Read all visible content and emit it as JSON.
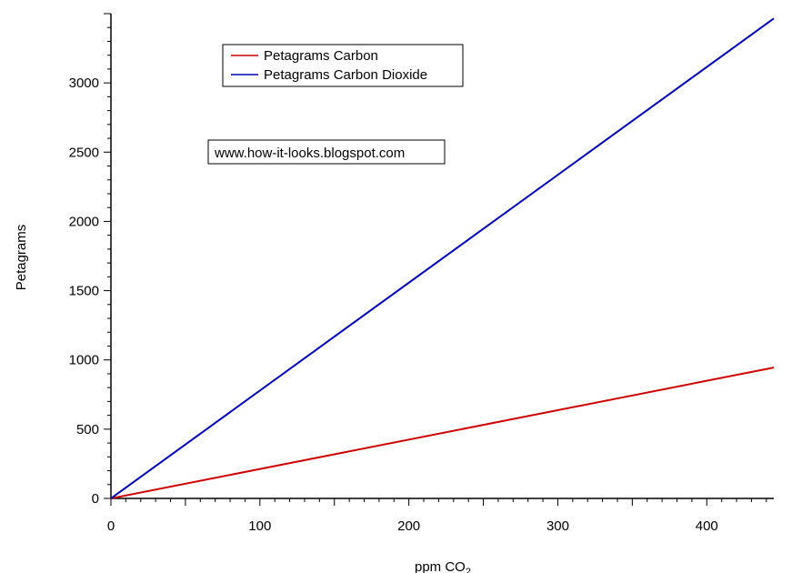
{
  "chart_data": {
    "type": "line",
    "title": "",
    "xlabel": "ppm CO",
    "xlabel_subscript": "2",
    "ylabel": "Petagrams",
    "xlim": [
      0,
      445
    ],
    "ylim": [
      0,
      3500
    ],
    "x_ticks": [
      0,
      100,
      200,
      300,
      400
    ],
    "y_ticks": [
      0,
      500,
      1000,
      1500,
      2000,
      2500,
      3000
    ],
    "x": [
      0,
      445
    ],
    "series": [
      {
        "name": "Petagrams Carbon",
        "color": "#cc0000",
        "values": [
          0,
          945
        ]
      },
      {
        "name": "Petagrams Carbon Dioxide",
        "color": "#0000b4",
        "values": [
          0,
          3465
        ]
      }
    ],
    "legend_position": "top-center",
    "grid": false
  },
  "watermark": "www.how-it-looks.blogspot.com"
}
